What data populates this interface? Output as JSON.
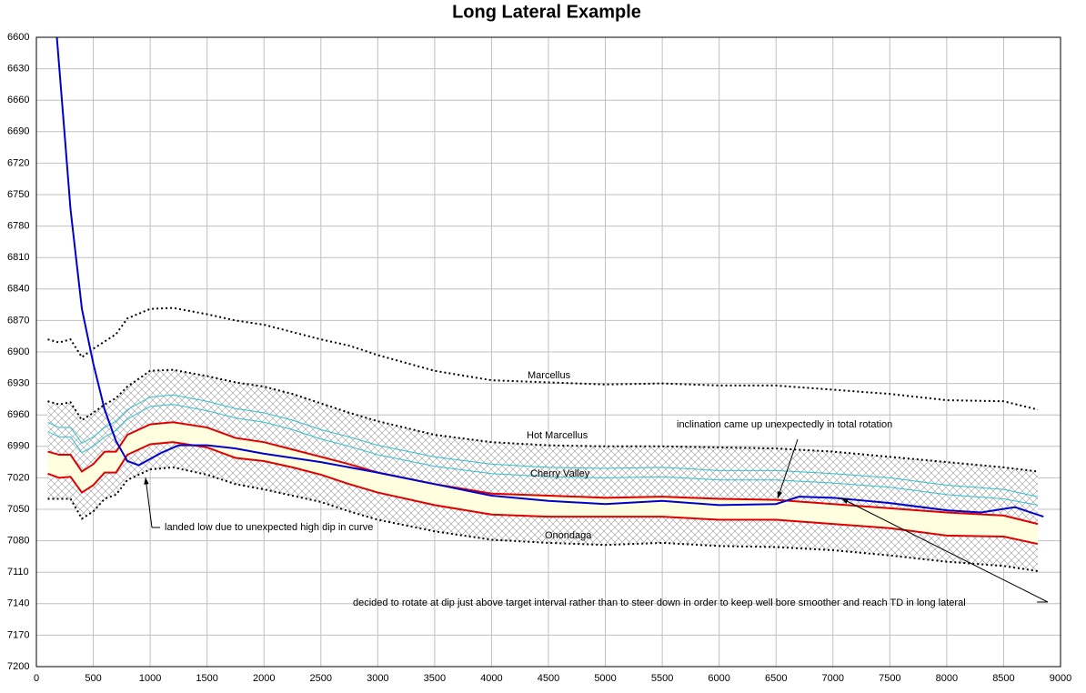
{
  "chart_data": {
    "type": "line",
    "title": "Long Lateral Example",
    "xlim": [
      0,
      9000
    ],
    "xticks": [
      0,
      500,
      1000,
      1500,
      2000,
      2500,
      3000,
      3500,
      4000,
      4500,
      5000,
      5500,
      6000,
      6500,
      7000,
      7500,
      8000,
      8500,
      9000
    ],
    "ylim": [
      7200,
      6600
    ],
    "yticks": [
      6600,
      6630,
      6660,
      6690,
      6720,
      6750,
      6780,
      6810,
      6840,
      6870,
      6900,
      6930,
      6960,
      6990,
      7020,
      7050,
      7080,
      7110,
      7140,
      7170,
      7200
    ],
    "grid": true,
    "series": [
      {
        "color": "#000000",
        "style": "dotted",
        "x": [
          100,
          200,
          300,
          400,
          500,
          600,
          700,
          800,
          1000,
          1200,
          1500,
          1750,
          2000,
          2250,
          2500,
          2750,
          3000,
          3500,
          4000,
          4500,
          5000,
          5500,
          6000,
          6500,
          7000,
          7500,
          8000,
          8500,
          8800
        ],
        "values": [
          6888,
          6891,
          6888,
          6905,
          6897,
          6890,
          6883,
          6868,
          6859,
          6858,
          6864,
          6870,
          6874,
          6881,
          6888,
          6894,
          6903,
          6918,
          6927,
          6929,
          6931,
          6930,
          6932,
          6932,
          6936,
          6940,
          6946,
          6947,
          6955
        ]
      },
      {
        "color": "#000000",
        "style": "dotted",
        "x": [
          100,
          200,
          300,
          400,
          500,
          600,
          700,
          800,
          1000,
          1200,
          1500,
          1750,
          2000,
          2250,
          2500,
          2750,
          3000,
          3500,
          4000,
          4500,
          5000,
          5500,
          6000,
          6500,
          7000,
          7500,
          8000,
          8500,
          8800
        ],
        "values": [
          6947,
          6950,
          6948,
          6965,
          6958,
          6950,
          6944,
          6933,
          6918,
          6917,
          6923,
          6929,
          6933,
          6940,
          6949,
          6958,
          6966,
          6979,
          6986,
          6989,
          6990,
          6990,
          6991,
          6992,
          6995,
          7000,
          7005,
          7010,
          7014
        ]
      },
      {
        "color": "#33c0d0",
        "style": "solid",
        "x": [
          100,
          200,
          300,
          400,
          500,
          600,
          700,
          800,
          1000,
          1200,
          1500,
          1750,
          2000,
          2250,
          2500,
          2750,
          3000,
          3500,
          4000,
          4500,
          5000,
          5500,
          6000,
          6500,
          7000,
          7500,
          8000,
          8500,
          8800
        ],
        "values": [
          6967,
          6972,
          6972,
          6987,
          6981,
          6972,
          6966,
          6955,
          6943,
          6941,
          6947,
          6954,
          6958,
          6965,
          6974,
          6981,
          6989,
          7000,
          7007,
          7010,
          7011,
          7010,
          7013,
          7013,
          7016,
          7020,
          7027,
          7031,
          7038
        ]
      },
      {
        "color": "#33c0d0",
        "style": "solid",
        "x": [
          100,
          200,
          300,
          400,
          500,
          600,
          700,
          800,
          1000,
          1200,
          1500,
          1750,
          2000,
          2250,
          2500,
          2750,
          3000,
          3500,
          4000,
          4500,
          5000,
          5500,
          6000,
          6500,
          7000,
          7500,
          8000,
          8500,
          8800
        ],
        "values": [
          6976,
          6981,
          6981,
          6996,
          6990,
          6981,
          6975,
          6964,
          6952,
          6950,
          6956,
          6963,
          6967,
          6974,
          6983,
          6990,
          6998,
          7009,
          7016,
          7019,
          7020,
          7019,
          7022,
          7022,
          7025,
          7029,
          7036,
          7040,
          7046
        ]
      },
      {
        "color": "#e00000",
        "style": "solid",
        "x": [
          100,
          200,
          300,
          400,
          500,
          600,
          700,
          800,
          1000,
          1200,
          1500,
          1750,
          2000,
          2250,
          2500,
          2750,
          3000,
          3500,
          4000,
          4500,
          5000,
          5500,
          6000,
          6500,
          7000,
          7500,
          8000,
          8500,
          8800
        ],
        "values": [
          6995,
          6998,
          6998,
          7014,
          7007,
          6995,
          6995,
          6979,
          6969,
          6967,
          6972,
          6982,
          6986,
          6993,
          7000,
          7007,
          7015,
          7026,
          7035,
          7037,
          7039,
          7038,
          7040,
          7041,
          7045,
          7049,
          7053,
          7056,
          7064
        ]
      },
      {
        "color": "#e00000",
        "style": "solid",
        "x": [
          100,
          200,
          300,
          400,
          500,
          600,
          700,
          800,
          1000,
          1200,
          1500,
          1750,
          2000,
          2250,
          2500,
          2750,
          3000,
          3500,
          4000,
          4500,
          5000,
          5500,
          6000,
          6500,
          7000,
          7500,
          8000,
          8500,
          8800
        ],
        "values": [
          7016,
          7020,
          7019,
          7034,
          7027,
          7015,
          7015,
          6998,
          6988,
          6986,
          6991,
          7001,
          7004,
          7010,
          7017,
          7026,
          7034,
          7046,
          7055,
          7057,
          7057,
          7057,
          7060,
          7060,
          7064,
          7068,
          7075,
          7076,
          7083
        ]
      },
      {
        "color": "#000000",
        "style": "dotted",
        "x": [
          100,
          200,
          300,
          400,
          500,
          600,
          700,
          800,
          1000,
          1200,
          1500,
          1750,
          2000,
          2250,
          2500,
          2750,
          3000,
          3500,
          4000,
          4500,
          5000,
          5500,
          6000,
          6500,
          7000,
          7500,
          8000,
          8500,
          8800
        ],
        "values": [
          7040,
          7040,
          7040,
          7059,
          7052,
          7040,
          7036,
          7022,
          7012,
          7010,
          7017,
          7026,
          7031,
          7037,
          7043,
          7052,
          7060,
          7071,
          7079,
          7082,
          7084,
          7082,
          7085,
          7086,
          7089,
          7094,
          7100,
          7104,
          7109
        ]
      },
      {
        "color": "#0000cc",
        "style": "solid",
        "x": [
          180,
          250,
          300,
          400,
          500,
          600,
          700,
          800,
          900,
          1000,
          1100,
          1250,
          1500,
          1750,
          2000,
          2500,
          3000,
          3500,
          4000,
          4500,
          5000,
          5500,
          6000,
          6500,
          6700,
          7000,
          7500,
          8000,
          8300,
          8600,
          8850
        ],
        "values": [
          6600,
          6695,
          6764,
          6859,
          6911,
          6955,
          6985,
          7004,
          7008,
          7002,
          6996,
          6989,
          6989,
          6992,
          6997,
          7005,
          7015,
          7026,
          7037,
          7042,
          7045,
          7042,
          7046,
          7045,
          7038,
          7039,
          7044,
          7051,
          7053,
          7048,
          7057
        ]
      }
    ],
    "annotations": [
      "Marcellus",
      "Hot Marcellus",
      "Cherry Valley",
      "Onondaga",
      "inclination came up unexpectedly in total rotation",
      "landed low due to unexpected high dip in curve",
      "decided to rotate at dip just above target interval rather than to steer down in order to keep well bore smoother and reach TD in long lateral"
    ]
  }
}
